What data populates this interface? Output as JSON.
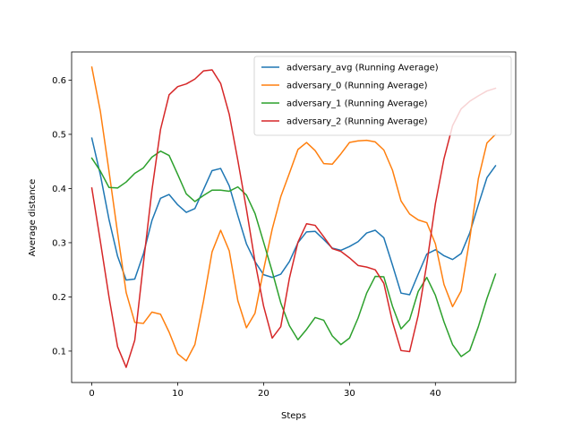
{
  "chart_data": {
    "type": "line",
    "title": "",
    "xlabel": "Steps",
    "ylabel": "Average distance",
    "xlim": [
      -2.35,
      49.35
    ],
    "ylim": [
      0.042,
      0.652
    ],
    "xticks": [
      0,
      10,
      20,
      30,
      40
    ],
    "yticks": [
      0.1,
      0.2,
      0.3,
      0.4,
      0.5,
      0.6
    ],
    "ytick_labels": [
      "0.1",
      "0.2",
      "0.3",
      "0.4",
      "0.5",
      "0.6"
    ],
    "grid": false,
    "legend_position": "top-right",
    "x": [
      0,
      1,
      2,
      3,
      4,
      5,
      6,
      7,
      8,
      9,
      10,
      11,
      12,
      13,
      14,
      15,
      16,
      17,
      18,
      19,
      20,
      21,
      22,
      23,
      24,
      25,
      26,
      27,
      28,
      29,
      30,
      31,
      32,
      33,
      34,
      35,
      36,
      37,
      38,
      39,
      40,
      41,
      42,
      43,
      44,
      45,
      46,
      47
    ],
    "series": [
      {
        "name": "adversary_avg (Running Average)",
        "color": "#1f77b4",
        "values": [
          0.493,
          0.425,
          0.343,
          0.275,
          0.231,
          0.233,
          0.279,
          0.341,
          0.382,
          0.389,
          0.37,
          0.356,
          0.363,
          0.398,
          0.433,
          0.437,
          0.405,
          0.35,
          0.298,
          0.265,
          0.241,
          0.236,
          0.242,
          0.265,
          0.3,
          0.32,
          0.321,
          0.306,
          0.29,
          0.286,
          0.293,
          0.302,
          0.318,
          0.323,
          0.309,
          0.259,
          0.207,
          0.204,
          0.242,
          0.279,
          0.287,
          0.276,
          0.269,
          0.28,
          0.318,
          0.37,
          0.42,
          0.442
        ]
      },
      {
        "name": "adversary_0 (Running Average)",
        "color": "#ff7f0e",
        "values": [
          0.624,
          0.542,
          0.432,
          0.318,
          0.208,
          0.153,
          0.151,
          0.172,
          0.168,
          0.135,
          0.095,
          0.082,
          0.112,
          0.192,
          0.283,
          0.323,
          0.285,
          0.193,
          0.143,
          0.17,
          0.25,
          0.325,
          0.385,
          0.428,
          0.472,
          0.485,
          0.47,
          0.446,
          0.445,
          0.464,
          0.485,
          0.488,
          0.489,
          0.486,
          0.471,
          0.434,
          0.377,
          0.353,
          0.342,
          0.337,
          0.298,
          0.223,
          0.182,
          0.211,
          0.307,
          0.418,
          0.484,
          0.5
        ]
      },
      {
        "name": "adversary_1 (Running Average)",
        "color": "#2ca02c",
        "values": [
          0.456,
          0.432,
          0.402,
          0.401,
          0.412,
          0.428,
          0.438,
          0.458,
          0.469,
          0.461,
          0.426,
          0.39,
          0.376,
          0.387,
          0.397,
          0.397,
          0.395,
          0.403,
          0.388,
          0.354,
          0.301,
          0.247,
          0.189,
          0.147,
          0.121,
          0.14,
          0.162,
          0.157,
          0.128,
          0.112,
          0.124,
          0.161,
          0.207,
          0.238,
          0.237,
          0.183,
          0.141,
          0.158,
          0.21,
          0.236,
          0.203,
          0.154,
          0.112,
          0.09,
          0.101,
          0.145,
          0.197,
          0.242
        ]
      },
      {
        "name": "adversary_2 (Running Average)",
        "color": "#d62728",
        "values": [
          0.401,
          0.302,
          0.2,
          0.108,
          0.07,
          0.12,
          0.261,
          0.397,
          0.509,
          0.573,
          0.588,
          0.593,
          0.602,
          0.617,
          0.619,
          0.594,
          0.537,
          0.452,
          0.362,
          0.265,
          0.183,
          0.124,
          0.145,
          0.234,
          0.301,
          0.335,
          0.332,
          0.311,
          0.289,
          0.284,
          0.272,
          0.258,
          0.255,
          0.25,
          0.225,
          0.154,
          0.101,
          0.099,
          0.166,
          0.261,
          0.372,
          0.455,
          0.516,
          0.547,
          0.561,
          0.571,
          0.58,
          0.585
        ]
      }
    ]
  }
}
